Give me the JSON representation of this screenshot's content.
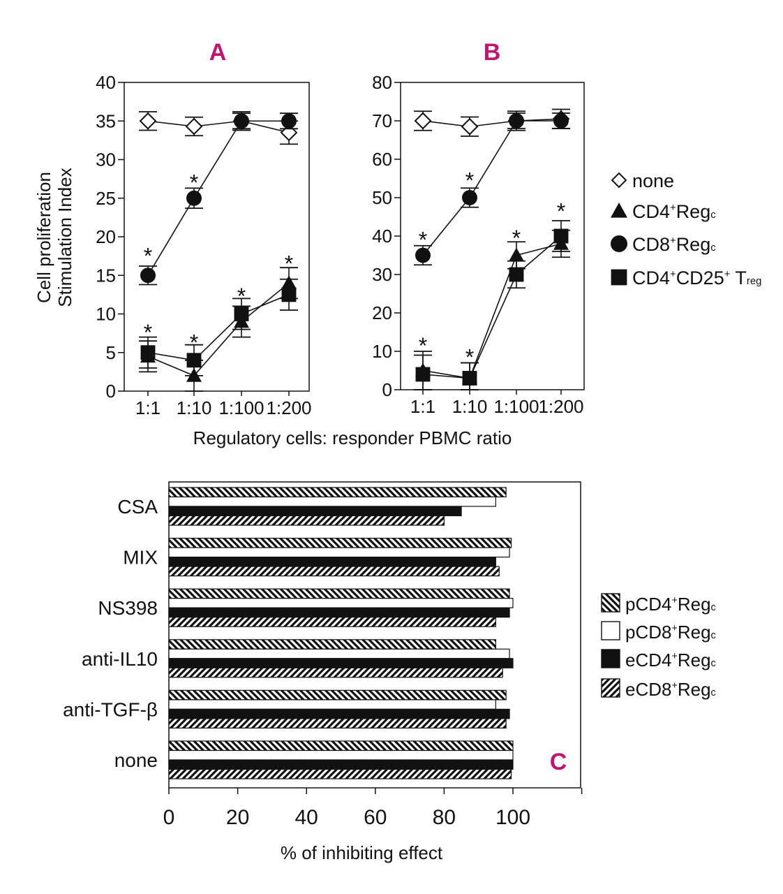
{
  "chart_data": [
    {
      "panel": "A",
      "type": "line",
      "ylabel_lines": [
        "Cell proliferation",
        "Stimulation Index"
      ],
      "categories": [
        "1:1",
        "1:10",
        "1:100",
        "1:200"
      ],
      "ylim": [
        0,
        40
      ],
      "yticks": [
        "0",
        "5",
        "10",
        "15",
        "20",
        "25",
        "30",
        "35",
        "40"
      ],
      "series": [
        {
          "name": "none",
          "marker": "diamond-open",
          "values": [
            35,
            34.3,
            35,
            33.5
          ],
          "err": [
            1.2,
            1.2,
            1.2,
            1.5
          ]
        },
        {
          "name": "CD8+Regc",
          "marker": "circle",
          "values": [
            15,
            25,
            35,
            35
          ],
          "err": [
            1.2,
            1.3,
            1.0,
            1.0
          ]
        },
        {
          "name": "CD4+Regc",
          "marker": "triangle",
          "values": [
            4.5,
            2,
            9,
            14
          ],
          "err": [
            2.0,
            2.0,
            2.0,
            2.0
          ]
        },
        {
          "name": "CD4+CD25+ Treg",
          "marker": "square",
          "values": [
            5,
            4,
            10,
            12.5
          ],
          "err": [
            2.0,
            2.0,
            2.0,
            2.0
          ]
        }
      ],
      "asterisks": [
        {
          "category": "1:1",
          "y": 18.5
        },
        {
          "category": "1:10",
          "y": 28
        },
        {
          "category": "1:1",
          "y": 8.6
        },
        {
          "category": "1:10",
          "y": 7.3
        },
        {
          "category": "1:100",
          "y": 13.3
        },
        {
          "category": "1:200",
          "y": 17.5
        }
      ]
    },
    {
      "panel": "B",
      "type": "line",
      "categories": [
        "1:1",
        "1:10",
        "1:100",
        "1:200"
      ],
      "ylim": [
        0,
        80
      ],
      "yticks": [
        "0",
        "10",
        "20",
        "30",
        "40",
        "50",
        "60",
        "70",
        "80"
      ],
      "series": [
        {
          "name": "none",
          "marker": "diamond-open",
          "values": [
            70,
            68.5,
            70,
            70.5
          ],
          "err": [
            2.5,
            2.5,
            2.5,
            2.5
          ]
        },
        {
          "name": "CD8+Regc",
          "marker": "circle",
          "values": [
            35,
            50,
            70,
            70
          ],
          "err": [
            2.5,
            2.5,
            2.0,
            2.0
          ]
        },
        {
          "name": "CD4+Regc",
          "marker": "triangle",
          "values": [
            5,
            3,
            35,
            38
          ],
          "err": [
            5,
            4,
            3.5,
            3.5
          ]
        },
        {
          "name": "CD4+CD25+ Treg",
          "marker": "square",
          "values": [
            4,
            3,
            30,
            40
          ],
          "err": [
            5,
            4,
            3.5,
            4
          ]
        }
      ],
      "asterisks": [
        {
          "category": "1:1",
          "y": 41
        },
        {
          "category": "1:10",
          "y": 56.5
        },
        {
          "category": "1:1",
          "y": 13.5
        },
        {
          "category": "1:10",
          "y": 10.5
        },
        {
          "category": "1:100",
          "y": 41.5
        },
        {
          "category": "1:200",
          "y": 48.5
        }
      ]
    },
    {
      "panel": "C",
      "type": "bar",
      "orientation": "horizontal",
      "xlabel": "% of inhibiting effect",
      "xlim": [
        0,
        120
      ],
      "xticks": [
        "0",
        "20",
        "40",
        "60",
        "80",
        "100"
      ],
      "categories": [
        "CSA",
        "MIX",
        "NS398",
        "anti-IL10",
        "anti-TGF-β",
        "none"
      ],
      "series": [
        {
          "name": "pCD4+Regc",
          "pattern": "diag-back",
          "values": [
            98,
            99.5,
            99,
            95,
            98,
            100
          ]
        },
        {
          "name": "pCD8+Regc",
          "pattern": "white",
          "values": [
            95,
            99,
            100,
            99,
            95,
            100
          ]
        },
        {
          "name": "eCD4+Regc",
          "pattern": "black",
          "values": [
            85,
            95,
            99,
            100,
            99,
            100
          ]
        },
        {
          "name": "eCD8+Regc",
          "pattern": "diag-forward",
          "values": [
            80,
            96,
            95,
            97,
            98,
            99.5
          ]
        }
      ]
    }
  ],
  "shared": {
    "xlabel_AB": "Regulatory cells: responder PBMC ratio",
    "legend_AB": [
      {
        "marker": "diamond-open",
        "text": "none"
      },
      {
        "marker": "triangle",
        "main": "CD4",
        "sup": "+",
        "rest": "Reg",
        "sub": "c"
      },
      {
        "marker": "circle",
        "main": "CD8",
        "sup": "+",
        "rest": "Reg",
        "sub": "c"
      },
      {
        "marker": "square",
        "main": "CD4",
        "sup": "+",
        "rest": "CD25",
        "sup2": "+",
        "rest2": " T",
        "sub": "reg"
      }
    ],
    "legend_C": [
      {
        "pattern": "diag-back",
        "main": "pCD4",
        "sup": "+",
        "rest": "Reg",
        "sub": "c"
      },
      {
        "pattern": "white",
        "main": "pCD8",
        "sup": "+",
        "rest": "Reg",
        "sub": "c"
      },
      {
        "pattern": "black",
        "main": "eCD4",
        "sup": "+",
        "rest": "Reg",
        "sub": "c"
      },
      {
        "pattern": "diag-forward",
        "main": "eCD8",
        "sup": "+",
        "rest": "Reg",
        "sub": "c"
      }
    ],
    "asterisk_text": "*",
    "colors": {
      "panel_letter": "#c0146e",
      "ink": "#111111",
      "background": "#ffffff"
    }
  }
}
